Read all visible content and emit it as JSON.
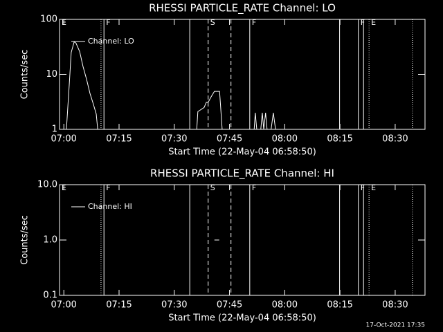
{
  "chart_data": [
    {
      "type": "line",
      "title": "RHESSI PARTICLE_RATE Channel: LO",
      "xlabel": "Start Time (22-May-04 06:58:50)",
      "ylabel": "Counts/sec",
      "xlim": [
        418.83,
        518.1
      ],
      "xticks": [
        {
          "value": 420,
          "label": "07:00"
        },
        {
          "value": 435,
          "label": "07:15"
        },
        {
          "value": 450,
          "label": "07:30"
        },
        {
          "value": 465,
          "label": "07:45"
        },
        {
          "value": 480,
          "label": "08:00"
        },
        {
          "value": 495,
          "label": "08:15"
        },
        {
          "value": 510,
          "label": "08:30"
        }
      ],
      "ylim": [
        1,
        100
      ],
      "yticks": [
        1,
        10,
        100
      ],
      "log_y": true,
      "legend": "upper left",
      "x": [
        420.7,
        421.5,
        422.0,
        422.8,
        423.3,
        424.3,
        425.2,
        426.2,
        427.1,
        428.0,
        428.8,
        429.2,
        null,
        456.1,
        456.4,
        458.1,
        458.7,
        459.2,
        460.0,
        460.9,
        462.3,
        462.8,
        463.0,
        null,
        471.7,
        472.0,
        472.4,
        473.5,
        473.9,
        474.3,
        474.8,
        475.2,
        476.3,
        476.9,
        477.5
      ],
      "series": [
        {
          "name": "Channel: LO",
          "color": "#ffffff",
          "values": [
            1,
            7,
            25,
            39,
            37,
            26,
            14,
            8,
            4.5,
            2.9,
            1.9,
            1,
            null,
            1,
            2.1,
            2.5,
            3.1,
            3.1,
            3.9,
            4.9,
            4.9,
            1.6,
            1,
            null,
            1,
            2,
            1,
            1,
            2,
            1,
            2,
            1,
            1,
            2,
            1
          ]
        }
      ],
      "markers": [
        {
          "x": 418.83,
          "style": "solid",
          "label": "E"
        },
        {
          "x": 430.1,
          "style": "dotted"
        },
        {
          "x": 430.9,
          "style": "solid",
          "label": "F"
        },
        {
          "x": 454.2,
          "style": "solid"
        },
        {
          "x": 459.2,
          "style": "dashed",
          "label": "S"
        },
        {
          "x": 465.4,
          "style": "dashed"
        },
        {
          "x": 470.5,
          "style": "solid",
          "label": "F"
        },
        {
          "x": 494.9,
          "style": "solid"
        },
        {
          "x": 500.0,
          "style": "solid",
          "label": "F"
        },
        {
          "x": 501.4,
          "style": "solid"
        },
        {
          "x": 502.9,
          "style": "dotted",
          "label": "E"
        },
        {
          "x": 514.7,
          "style": "dotted"
        }
      ]
    },
    {
      "type": "line",
      "title": "RHESSI PARTICLE_RATE Channel: HI",
      "xlabel": "Start Time (22-May-04 06:58:50)",
      "ylabel": "Counts/sec",
      "xlim": [
        418.83,
        518.1
      ],
      "xticks": [
        {
          "value": 420,
          "label": "07:00"
        },
        {
          "value": 435,
          "label": "07:15"
        },
        {
          "value": 450,
          "label": "07:30"
        },
        {
          "value": 465,
          "label": "07:45"
        },
        {
          "value": 480,
          "label": "08:00"
        },
        {
          "value": 495,
          "label": "08:15"
        },
        {
          "value": 510,
          "label": "08:30"
        }
      ],
      "ylim": [
        0.1,
        10
      ],
      "yticks": [
        0.1,
        {
          "value": 1,
          "label": "1.0"
        },
        {
          "value": 10,
          "label": "10.0"
        }
      ],
      "log_y": true,
      "legend": "upper left",
      "x": [
        460.9,
        462.2
      ],
      "series": [
        {
          "name": "Channel: HI",
          "color": "#ffffff",
          "values": [
            1,
            1
          ]
        }
      ],
      "markers": [
        {
          "x": 418.83,
          "style": "solid",
          "label": "E"
        },
        {
          "x": 430.1,
          "style": "dotted"
        },
        {
          "x": 430.9,
          "style": "solid",
          "label": "F"
        },
        {
          "x": 454.2,
          "style": "solid"
        },
        {
          "x": 459.2,
          "style": "dashed",
          "label": "S"
        },
        {
          "x": 465.4,
          "style": "dashed"
        },
        {
          "x": 470.5,
          "style": "solid",
          "label": "F"
        },
        {
          "x": 494.9,
          "style": "solid"
        },
        {
          "x": 500.0,
          "style": "solid",
          "label": "F"
        },
        {
          "x": 501.4,
          "style": "solid"
        },
        {
          "x": 502.9,
          "style": "dotted",
          "label": "E"
        },
        {
          "x": 514.7,
          "style": "dotted"
        }
      ]
    }
  ],
  "footer": "17-Oct-2021 17:35"
}
